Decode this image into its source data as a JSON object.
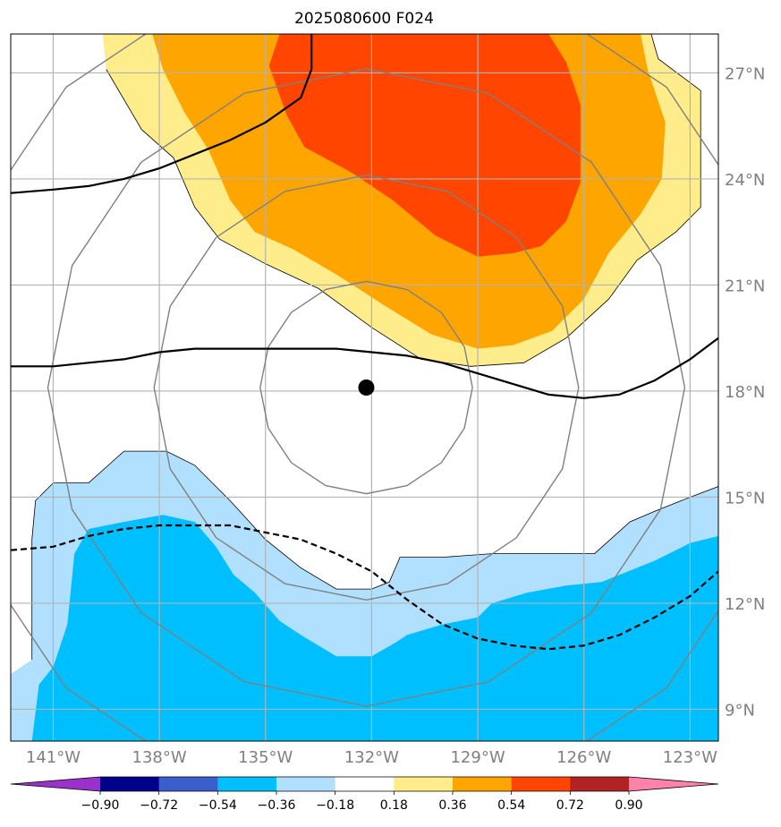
{
  "chart_data": {
    "type": "heatmap",
    "title": "2025080600 F024",
    "x_ticks": [
      {
        "label": "141°W",
        "lon": -141
      },
      {
        "label": "138°W",
        "lon": -138
      },
      {
        "label": "135°W",
        "lon": -135
      },
      {
        "label": "132°W",
        "lon": -132
      },
      {
        "label": "129°W",
        "lon": -129
      },
      {
        "label": "126°W",
        "lon": -126
      },
      {
        "label": "123°W",
        "lon": -123
      }
    ],
    "y_ticks": [
      {
        "label": "27°N",
        "lat": 27
      },
      {
        "label": "24°N",
        "lat": 24
      },
      {
        "label": "21°N",
        "lat": 21
      },
      {
        "label": "18°N",
        "lat": 18
      },
      {
        "label": "15°N",
        "lat": 15
      },
      {
        "label": "12°N",
        "lat": 12
      },
      {
        "label": "9°N",
        "lat": 9
      }
    ],
    "lon_range": [
      -142.2,
      -122.2
    ],
    "lat_range": [
      8.1,
      28.1
    ],
    "grid": true,
    "tick_label_color": "#808080",
    "center_marker": {
      "lon": -132.15,
      "lat": 18.1
    },
    "range_rings_deg": [
      3,
      6,
      9,
      12
    ],
    "colorbar": {
      "position": "bottom",
      "extend": "both",
      "bounds": [
        -0.9,
        -0.72,
        -0.54,
        -0.36,
        -0.18,
        0.18,
        0.36,
        0.54,
        0.72,
        0.9
      ],
      "tick_labels": [
        "−0.90",
        "−0.72",
        "−0.54",
        "−0.36",
        "−0.18",
        "0.18",
        "0.36",
        "0.54",
        "0.72",
        "0.90"
      ],
      "colors": [
        "#9932cc",
        "#00008b",
        "#3a5fcd",
        "#00bfff",
        "#b0e0fe",
        "#ffffff",
        "#ffec8b",
        "#ffa500",
        "#ff4500",
        "#b22222",
        "#ff82ab"
      ]
    },
    "filled_regions": [
      {
        "level": "0.18 to 0.36",
        "color": "#ffec8b",
        "outline": [
          [
            -139.6,
            28.1
          ],
          [
            -138.2,
            28.1
          ],
          [
            -136.3,
            28.1
          ],
          [
            -126.5,
            28.1
          ],
          [
            -124.1,
            28.1
          ],
          [
            -123.9,
            27.4
          ],
          [
            -122.7,
            26.5
          ],
          [
            -122.7,
            23.2
          ],
          [
            -123.4,
            22.5
          ],
          [
            -124.5,
            21.7
          ],
          [
            -125.3,
            20.6
          ],
          [
            -126.5,
            19.5
          ],
          [
            -127.7,
            18.8
          ],
          [
            -129.2,
            18.7
          ],
          [
            -130.6,
            18.9
          ],
          [
            -132.0,
            19.8
          ],
          [
            -133.5,
            20.9
          ],
          [
            -135.0,
            21.6
          ],
          [
            -136.3,
            22.3
          ],
          [
            -137.0,
            23.2
          ],
          [
            -137.6,
            24.6
          ],
          [
            -138.5,
            25.4
          ],
          [
            -139.5,
            27.1
          ]
        ]
      },
      {
        "level": "0.36 to 0.54",
        "color": "#ffa500",
        "outline": [
          [
            -138.2,
            28.1
          ],
          [
            -124.4,
            28.1
          ],
          [
            -124.2,
            27.1
          ],
          [
            -123.7,
            25.6
          ],
          [
            -123.8,
            24.0
          ],
          [
            -124.4,
            23.0
          ],
          [
            -125.3,
            21.9
          ],
          [
            -126.0,
            20.6
          ],
          [
            -126.9,
            19.7
          ],
          [
            -128.0,
            19.3
          ],
          [
            -129.0,
            19.2
          ],
          [
            -130.3,
            19.6
          ],
          [
            -131.6,
            20.4
          ],
          [
            -133.0,
            21.3
          ],
          [
            -134.2,
            22.0
          ],
          [
            -135.3,
            22.5
          ],
          [
            -136.0,
            23.4
          ],
          [
            -136.6,
            24.8
          ],
          [
            -137.3,
            25.9
          ],
          [
            -137.9,
            27.1
          ]
        ]
      },
      {
        "level": "0.54 to 0.72",
        "color": "#ff4500",
        "outline": [
          [
            -134.6,
            28.1
          ],
          [
            -127.0,
            28.1
          ],
          [
            -126.5,
            27.3
          ],
          [
            -126.1,
            26.1
          ],
          [
            -126.1,
            23.9
          ],
          [
            -126.5,
            22.8
          ],
          [
            -127.2,
            22.1
          ],
          [
            -128.0,
            21.9
          ],
          [
            -129.0,
            21.8
          ],
          [
            -130.2,
            22.4
          ],
          [
            -131.4,
            23.4
          ],
          [
            -132.6,
            24.2
          ],
          [
            -133.9,
            24.9
          ],
          [
            -134.4,
            25.8
          ],
          [
            -134.9,
            27.2
          ]
        ]
      },
      {
        "level": "-0.36 to -0.18",
        "color": "#b0e0fe",
        "outline": [
          [
            -142.2,
            10.0
          ],
          [
            -142.2,
            8.1
          ],
          [
            -122.2,
            8.1
          ],
          [
            -122.2,
            15.3
          ],
          [
            -123.0,
            15.0
          ],
          [
            -124.0,
            14.6
          ],
          [
            -124.7,
            14.3
          ],
          [
            -125.7,
            13.4
          ],
          [
            -127.3,
            13.4
          ],
          [
            -128.6,
            13.4
          ],
          [
            -130.0,
            13.3
          ],
          [
            -131.2,
            13.3
          ],
          [
            -131.5,
            12.6
          ],
          [
            -132.0,
            12.4
          ],
          [
            -133.0,
            12.4
          ],
          [
            -134.0,
            13.0
          ],
          [
            -135.0,
            13.8
          ],
          [
            -136.0,
            14.9
          ],
          [
            -137.0,
            15.9
          ],
          [
            -137.8,
            16.3
          ],
          [
            -139.0,
            16.3
          ],
          [
            -140.0,
            15.4
          ],
          [
            -141.0,
            15.4
          ],
          [
            -141.5,
            14.9
          ],
          [
            -141.6,
            13.8
          ],
          [
            -141.6,
            11.8
          ],
          [
            -141.6,
            10.4
          ]
        ]
      },
      {
        "level": "-0.54 to -0.36",
        "color": "#00bfff",
        "outline": [
          [
            -141.6,
            8.1
          ],
          [
            -122.2,
            8.1
          ],
          [
            -122.2,
            13.9
          ],
          [
            -123.0,
            13.7
          ],
          [
            -124.0,
            13.2
          ],
          [
            -125.5,
            12.6
          ],
          [
            -126.5,
            12.5
          ],
          [
            -127.6,
            12.3
          ],
          [
            -128.6,
            12.0
          ],
          [
            -129.0,
            11.6
          ],
          [
            -130.0,
            11.4
          ],
          [
            -131.0,
            11.1
          ],
          [
            -131.3,
            10.9
          ],
          [
            -132.0,
            10.5
          ],
          [
            -133.0,
            10.5
          ],
          [
            -133.5,
            10.8
          ],
          [
            -134.0,
            11.1
          ],
          [
            -134.6,
            11.5
          ],
          [
            -135.3,
            12.3
          ],
          [
            -135.9,
            12.8
          ],
          [
            -136.4,
            13.6
          ],
          [
            -137.0,
            14.3
          ],
          [
            -137.9,
            14.5
          ],
          [
            -139.0,
            14.3
          ],
          [
            -140.0,
            14.1
          ],
          [
            -140.4,
            13.4
          ],
          [
            -140.6,
            11.4
          ],
          [
            -141.0,
            10.2
          ],
          [
            -141.4,
            9.7
          ]
        ]
      }
    ],
    "contours": [
      {
        "style": "solid",
        "color": "#000000",
        "width": 2.2,
        "points": [
          [
            -142.2,
            18.7
          ],
          [
            -141.0,
            18.7
          ],
          [
            -140.0,
            18.8
          ],
          [
            -139.0,
            18.9
          ],
          [
            -138.0,
            19.1
          ],
          [
            -137.0,
            19.2
          ],
          [
            -136.0,
            19.2
          ],
          [
            -135.0,
            19.2
          ],
          [
            -134.0,
            19.2
          ],
          [
            -133.0,
            19.2
          ],
          [
            -132.0,
            19.1
          ],
          [
            -131.0,
            19.0
          ],
          [
            -130.0,
            18.8
          ],
          [
            -129.0,
            18.5
          ],
          [
            -128.0,
            18.2
          ],
          [
            -127.0,
            17.9
          ],
          [
            -126.0,
            17.8
          ],
          [
            -125.0,
            17.9
          ],
          [
            -124.0,
            18.3
          ],
          [
            -123.0,
            18.9
          ],
          [
            -122.2,
            19.5
          ]
        ]
      },
      {
        "style": "solid",
        "color": "#000000",
        "width": 2.2,
        "points": [
          [
            -142.2,
            23.6
          ],
          [
            -141.0,
            23.7
          ],
          [
            -140.0,
            23.8
          ],
          [
            -139.0,
            24.0
          ],
          [
            -138.0,
            24.3
          ],
          [
            -137.0,
            24.7
          ],
          [
            -136.0,
            25.1
          ],
          [
            -135.0,
            25.6
          ],
          [
            -134.0,
            26.3
          ],
          [
            -133.7,
            27.1
          ],
          [
            -133.7,
            28.1
          ]
        ]
      },
      {
        "style": "dashed",
        "color": "#000000",
        "width": 2.2,
        "points": [
          [
            -142.2,
            13.5
          ],
          [
            -141.0,
            13.6
          ],
          [
            -140.0,
            13.9
          ],
          [
            -139.0,
            14.1
          ],
          [
            -138.0,
            14.2
          ],
          [
            -137.0,
            14.2
          ],
          [
            -136.0,
            14.2
          ],
          [
            -135.0,
            14.0
          ],
          [
            -134.0,
            13.8
          ],
          [
            -133.0,
            13.4
          ],
          [
            -132.0,
            12.9
          ],
          [
            -131.0,
            12.1
          ],
          [
            -130.0,
            11.4
          ],
          [
            -129.0,
            11.0
          ],
          [
            -128.0,
            10.8
          ],
          [
            -127.0,
            10.7
          ],
          [
            -126.0,
            10.8
          ],
          [
            -125.0,
            11.1
          ],
          [
            -124.0,
            11.6
          ],
          [
            -123.0,
            12.2
          ],
          [
            -122.2,
            12.9
          ]
        ]
      }
    ]
  }
}
